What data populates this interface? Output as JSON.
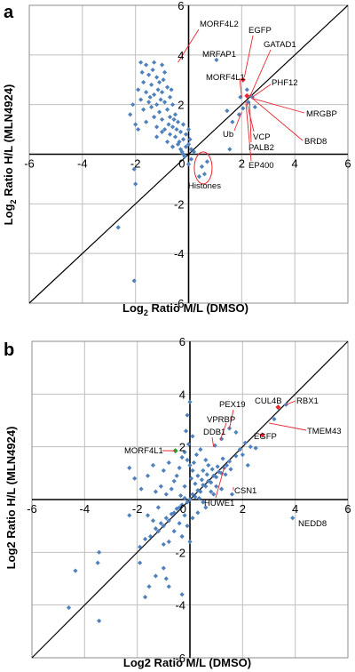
{
  "chart_data": [
    {
      "type": "scatter",
      "panel_label": "a",
      "xlabel_main": "Log",
      "xlabel_sub": "2",
      "xlabel_rest": " Ratio M/L (DMSO)",
      "ylabel_main": "Log",
      "ylabel_sub": "2",
      "ylabel_rest": " Ratio H/L (MLN4924)",
      "xlim": [
        -6,
        6
      ],
      "ylim": [
        -6,
        6
      ],
      "xticks": [
        -6,
        -4,
        -2,
        0,
        2,
        4,
        6
      ],
      "yticks": [
        -6,
        -4,
        -2,
        0,
        2,
        4,
        6
      ],
      "grid": true,
      "diagonal": true,
      "colors": {
        "point": "#4f81bd",
        "highlight": "#e8272f",
        "callout": "#e8272f",
        "grid": "#bfbfbf"
      },
      "highlight_points": [
        {
          "x": 2.05,
          "y": 3.0
        },
        {
          "x": 2.2,
          "y": 2.35
        }
      ],
      "annotations": [
        {
          "text": "MORF4L2",
          "x": -0.4,
          "y": 3.7
        },
        {
          "text": "EGFP",
          "x": 2.1,
          "y": 3.1
        },
        {
          "text": "GATAD1",
          "x": 2.3,
          "y": 2.3
        },
        {
          "text": "MRFAP1",
          "x": 1.05,
          "y": 3.8
        },
        {
          "text": "MORF4L1",
          "x": 2.0,
          "y": 2.3
        },
        {
          "text": "PHF12",
          "x": 2.4,
          "y": 2.3
        },
        {
          "text": "MRGBP",
          "x": 2.4,
          "y": 2.25
        },
        {
          "text": "BRD8",
          "x": 2.4,
          "y": 2.25
        },
        {
          "text": "Ub",
          "x": 2.0,
          "y": 1.7
        },
        {
          "text": "VCP",
          "x": 2.2,
          "y": 2.05
        },
        {
          "text": "PALB2",
          "x": 2.3,
          "y": 2.1
        },
        {
          "text": "EP400",
          "x": 2.15,
          "y": 2.15
        },
        {
          "text": "Histones",
          "x": 0.65,
          "y": -0.2
        }
      ],
      "points": [
        [
          -1.8,
          3.7
        ],
        [
          -1.6,
          3.6
        ],
        [
          -1.3,
          3.7
        ],
        [
          -1.0,
          3.6
        ],
        [
          -0.9,
          3.3
        ],
        [
          -1.5,
          3.2
        ],
        [
          -1.2,
          3.1
        ],
        [
          -1.7,
          2.9
        ],
        [
          -1.4,
          2.8
        ],
        [
          -1.1,
          2.9
        ],
        [
          -0.8,
          2.7
        ],
        [
          -1.9,
          2.6
        ],
        [
          -1.6,
          2.5
        ],
        [
          -1.3,
          2.4
        ],
        [
          -1.0,
          2.5
        ],
        [
          -0.7,
          2.3
        ],
        [
          -1.8,
          2.2
        ],
        [
          -1.5,
          2.1
        ],
        [
          -1.2,
          2.0
        ],
        [
          -0.9,
          2.1
        ],
        [
          -0.6,
          2.0
        ],
        [
          -1.7,
          1.8
        ],
        [
          -1.4,
          1.9
        ],
        [
          -1.1,
          1.7
        ],
        [
          -0.8,
          1.8
        ],
        [
          -0.5,
          1.6
        ],
        [
          -1.3,
          1.5
        ],
        [
          -1.0,
          1.4
        ],
        [
          -0.7,
          1.5
        ],
        [
          -0.4,
          1.3
        ],
        [
          -2.1,
          2.0
        ],
        [
          -2.2,
          1.6
        ],
        [
          -2.0,
          1.2
        ],
        [
          -1.9,
          1.0
        ],
        [
          -1.6,
          1.3
        ],
        [
          -1.2,
          1.1
        ],
        [
          -0.9,
          1.0
        ],
        [
          -0.6,
          1.1
        ],
        [
          -0.3,
          0.9
        ],
        [
          -0.5,
          0.7
        ],
        [
          -0.2,
          0.6
        ],
        [
          -0.4,
          0.4
        ],
        [
          -0.1,
          0.3
        ],
        [
          -0.3,
          0.2
        ],
        [
          -0.2,
          0.0
        ],
        [
          0.0,
          0.4
        ],
        [
          0.1,
          0.2
        ],
        [
          0.2,
          0.1
        ],
        [
          -0.1,
          0.8
        ],
        [
          0.0,
          1.0
        ],
        [
          -0.2,
          1.2
        ],
        [
          0.05,
          0.6
        ],
        [
          -0.35,
          0.5
        ],
        [
          -0.15,
          -0.1
        ],
        [
          0.1,
          -0.2
        ],
        [
          0.0,
          -0.4
        ],
        [
          -0.25,
          0.1
        ],
        [
          -0.7,
          0.8
        ],
        [
          -0.8,
          0.5
        ],
        [
          -1.0,
          0.9
        ],
        [
          -1.2,
          0.7
        ],
        [
          -0.6,
          0.3
        ],
        [
          -0.45,
          1.0
        ],
        [
          -0.55,
          1.4
        ],
        [
          -0.65,
          2.6
        ],
        [
          -1.45,
          2.3
        ],
        [
          -1.15,
          2.6
        ],
        [
          -0.95,
          3.0
        ],
        [
          -1.35,
          3.4
        ],
        [
          -1.75,
          3.3
        ],
        [
          -1.05,
          2.2
        ],
        [
          -0.75,
          1.2
        ],
        [
          0.5,
          -0.5
        ],
        [
          0.6,
          -0.8
        ],
        [
          0.4,
          -0.9
        ],
        [
          0.7,
          -0.3
        ],
        [
          -2.05,
          -0.6
        ],
        [
          -2.0,
          -1.2
        ],
        [
          -2.65,
          -2.95
        ],
        [
          -2.05,
          -5.1
        ],
        [
          1.05,
          3.8
        ],
        [
          1.45,
          1.75
        ],
        [
          1.65,
          1.3
        ],
        [
          1.95,
          2.3
        ],
        [
          2.05,
          1.85
        ],
        [
          2.25,
          2.1
        ],
        [
          2.35,
          2.35
        ],
        [
          2.4,
          2.3
        ],
        [
          2.5,
          1.9
        ],
        [
          2.2,
          2.6
        ],
        [
          1.9,
          1.6
        ],
        [
          1.55,
          0.2
        ]
      ]
    },
    {
      "type": "scatter",
      "panel_label": "b",
      "xlabel_main": "Log2 Ratio M/L (DMSO)",
      "ylabel_main": "Log2 Ratio H/L (MLN4924)",
      "xlim": [
        -6,
        6
      ],
      "ylim": [
        -6,
        6
      ],
      "xticks": [
        -6,
        -4,
        -2,
        0,
        2,
        4,
        6
      ],
      "yticks": [
        -6,
        -4,
        -2,
        0,
        2,
        4,
        6
      ],
      "grid": true,
      "diagonal": true,
      "colors": {
        "point": "#4f81bd",
        "highlight_red": "#e8272f",
        "highlight_green": "#2ca02c",
        "callout": "#e8272f",
        "grid": "#bfbfbf"
      },
      "highlight_points": [
        {
          "x": 3.35,
          "y": 3.5,
          "color": "red"
        },
        {
          "x": 2.75,
          "y": 2.45,
          "color": "red"
        },
        {
          "x": -0.55,
          "y": 1.85,
          "color": "green"
        }
      ],
      "annotations": [
        {
          "text": "PEX19",
          "x": 1.5,
          "y": 2.7
        },
        {
          "text": "CUL4B",
          "x": 3.3,
          "y": 3.5
        },
        {
          "text": "RBX1",
          "x": 3.65,
          "y": 3.6
        },
        {
          "text": "VPRBP",
          "x": 1.15,
          "y": 2.25
        },
        {
          "text": "TMEM43",
          "x": 3.0,
          "y": 2.9
        },
        {
          "text": "DDB1",
          "x": 0.9,
          "y": 2.0
        },
        {
          "text": "EGFP",
          "x": 2.75,
          "y": 2.45
        },
        {
          "text": "MORF4L1",
          "x": -0.55,
          "y": 1.85
        },
        {
          "text": "CSN1",
          "x": 1.65,
          "y": 0.35
        },
        {
          "text": "HUWE1",
          "x": 1.3,
          "y": 1.2
        },
        {
          "text": "NEDD8",
          "x": 3.9,
          "y": -0.7
        }
      ],
      "points": [
        [
          0.0,
          0.0
        ],
        [
          0.1,
          0.2
        ],
        [
          0.2,
          0.1
        ],
        [
          0.3,
          0.35
        ],
        [
          0.4,
          0.3
        ],
        [
          0.5,
          0.55
        ],
        [
          0.6,
          0.5
        ],
        [
          0.7,
          0.7
        ],
        [
          0.8,
          0.65
        ],
        [
          0.9,
          0.9
        ],
        [
          1.0,
          0.85
        ],
        [
          1.1,
          1.05
        ],
        [
          1.2,
          1.0
        ],
        [
          1.3,
          1.2
        ],
        [
          1.4,
          1.3
        ],
        [
          1.5,
          1.45
        ],
        [
          -0.1,
          -0.1
        ],
        [
          -0.2,
          0.05
        ],
        [
          -0.3,
          -0.2
        ],
        [
          -0.4,
          -0.3
        ],
        [
          -0.5,
          -0.35
        ],
        [
          -0.6,
          -0.5
        ],
        [
          -0.7,
          -0.55
        ],
        [
          -0.8,
          -0.8
        ],
        [
          -0.9,
          -0.7
        ],
        [
          -1.0,
          -1.0
        ],
        [
          -1.1,
          -0.9
        ],
        [
          -1.2,
          -1.2
        ],
        [
          -1.3,
          -1.1
        ],
        [
          -1.5,
          -1.4
        ],
        [
          -1.7,
          -1.5
        ],
        [
          -1.9,
          -1.8
        ],
        [
          0.2,
          0.6
        ],
        [
          0.3,
          0.9
        ],
        [
          0.1,
          1.1
        ],
        [
          0.0,
          1.3
        ],
        [
          -0.1,
          1.5
        ],
        [
          -0.2,
          1.8
        ],
        [
          -0.3,
          1.6
        ],
        [
          -0.4,
          1.2
        ],
        [
          -0.5,
          0.9
        ],
        [
          -0.6,
          0.7
        ],
        [
          -0.7,
          0.4
        ],
        [
          -0.2,
          0.5
        ],
        [
          0.05,
          0.8
        ],
        [
          0.15,
          1.4
        ],
        [
          0.25,
          1.7
        ],
        [
          -0.05,
          2.1
        ],
        [
          0.1,
          2.4
        ],
        [
          -0.15,
          2.6
        ],
        [
          0.0,
          3.7
        ],
        [
          -0.1,
          3.2
        ],
        [
          0.5,
          1.1
        ],
        [
          0.6,
          1.5
        ],
        [
          0.4,
          1.9
        ],
        [
          0.7,
          1.3
        ],
        [
          0.8,
          0.3
        ],
        [
          0.9,
          0.2
        ],
        [
          1.0,
          0.5
        ],
        [
          1.2,
          0.4
        ],
        [
          0.5,
          -0.1
        ],
        [
          0.6,
          -0.3
        ],
        [
          0.3,
          -0.5
        ],
        [
          0.1,
          -0.7
        ],
        [
          -0.2,
          -0.6
        ],
        [
          -0.1,
          -1.0
        ],
        [
          -0.4,
          -0.9
        ],
        [
          -0.6,
          -1.2
        ],
        [
          -0.3,
          -1.4
        ],
        [
          0.0,
          -1.6
        ],
        [
          -0.8,
          -1.6
        ],
        [
          -1.0,
          -1.7
        ],
        [
          -1.4,
          -0.8
        ],
        [
          -1.6,
          -0.6
        ],
        [
          -1.2,
          -0.3
        ],
        [
          -0.9,
          0.2
        ],
        [
          -1.1,
          0.5
        ],
        [
          -1.3,
          0.3
        ],
        [
          -0.35,
          0.15
        ],
        [
          0.35,
          0.05
        ],
        [
          0.45,
          0.75
        ],
        [
          0.65,
          0.95
        ],
        [
          0.85,
          1.15
        ],
        [
          1.05,
          1.25
        ],
        [
          1.25,
          1.55
        ],
        [
          1.35,
          0.95
        ],
        [
          1.55,
          1.15
        ],
        [
          1.75,
          1.65
        ],
        [
          1.9,
          1.9
        ],
        [
          2.0,
          1.7
        ],
        [
          1.5,
          2.7
        ],
        [
          1.2,
          2.3
        ],
        [
          0.95,
          2.05
        ],
        [
          2.1,
          2.15
        ],
        [
          -2.3,
          1.2
        ],
        [
          -2.1,
          0.8
        ],
        [
          -1.85,
          0.4
        ],
        [
          -1.6,
          0.9
        ],
        [
          -1.4,
          1.3
        ],
        [
          -1.0,
          1.1
        ],
        [
          -0.8,
          1.4
        ],
        [
          -2.3,
          -0.6
        ],
        [
          -1.9,
          -2.4
        ],
        [
          -1.0,
          -2.6
        ],
        [
          -1.3,
          -2.9
        ],
        [
          -0.8,
          -3.3
        ],
        [
          -1.7,
          -3.7
        ],
        [
          -0.9,
          -3.0
        ],
        [
          -0.3,
          -3.6
        ],
        [
          -1.55,
          -3.3
        ],
        [
          -3.45,
          -2.0
        ],
        [
          -3.5,
          -2.4
        ],
        [
          -4.35,
          -2.7
        ],
        [
          -3.45,
          -4.6
        ],
        [
          -4.6,
          -4.1
        ],
        [
          2.3,
          2.0
        ],
        [
          2.5,
          1.95
        ],
        [
          2.2,
          1.3
        ],
        [
          1.6,
          0.2
        ],
        [
          3.9,
          -0.7
        ],
        [
          3.2,
          3.05
        ],
        [
          3.65,
          3.6
        ],
        [
          1.75,
          2.55
        ]
      ]
    }
  ]
}
